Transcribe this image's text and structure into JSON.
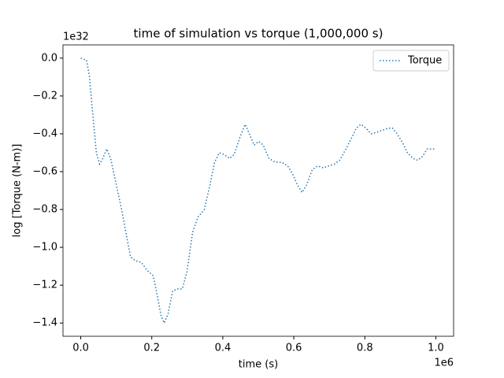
{
  "chart_data": {
    "type": "line",
    "title": "time of simulation vs torque (1,000,000 s)",
    "xlabel": "time (s)",
    "ylabel": "log [Torque (N-m)]",
    "x_offset_label": "1e6",
    "y_offset_label": "1e32",
    "x": [
      0,
      0.016,
      0.024,
      0.035,
      0.044,
      0.053,
      0.062,
      0.073,
      0.084,
      0.098,
      0.115,
      0.129,
      0.14,
      0.153,
      0.171,
      0.186,
      0.204,
      0.215,
      0.226,
      0.235,
      0.246,
      0.259,
      0.273,
      0.286,
      0.299,
      0.315,
      0.33,
      0.348,
      0.364,
      0.377,
      0.39,
      0.404,
      0.419,
      0.432,
      0.448,
      0.463,
      0.477,
      0.488,
      0.501,
      0.514,
      0.53,
      0.548,
      0.565,
      0.583,
      0.596,
      0.61,
      0.623,
      0.636,
      0.652,
      0.667,
      0.683,
      0.698,
      0.714,
      0.729,
      0.747,
      0.763,
      0.776,
      0.789,
      0.803,
      0.818,
      0.836,
      0.851,
      0.865,
      0.878,
      0.891,
      0.907,
      0.92,
      0.936,
      0.949,
      0.962,
      0.976,
      0.989,
      1.0
    ],
    "series": [
      {
        "name": "Torque",
        "color": "#1f77b4",
        "values": [
          0,
          -0.01,
          -0.09,
          -0.32,
          -0.5,
          -0.56,
          -0.53,
          -0.48,
          -0.53,
          -0.65,
          -0.8,
          -0.94,
          -1.05,
          -1.07,
          -1.08,
          -1.12,
          -1.15,
          -1.25,
          -1.36,
          -1.4,
          -1.35,
          -1.23,
          -1.22,
          -1.22,
          -1.13,
          -0.92,
          -0.84,
          -0.8,
          -0.67,
          -0.55,
          -0.5,
          -0.51,
          -0.53,
          -0.51,
          -0.42,
          -0.35,
          -0.41,
          -0.46,
          -0.44,
          -0.46,
          -0.53,
          -0.55,
          -0.55,
          -0.57,
          -0.61,
          -0.67,
          -0.71,
          -0.67,
          -0.59,
          -0.57,
          -0.58,
          -0.57,
          -0.56,
          -0.54,
          -0.48,
          -0.42,
          -0.37,
          -0.35,
          -0.37,
          -0.4,
          -0.39,
          -0.38,
          -0.37,
          -0.37,
          -0.4,
          -0.45,
          -0.5,
          -0.53,
          -0.54,
          -0.52,
          -0.48,
          -0.48,
          -0.48
        ]
      }
    ],
    "xlim": [
      -0.05,
      1.05
    ],
    "ylim": [
      -1.47,
      0.07
    ],
    "xticks": [
      {
        "value": 0,
        "label": "0.0"
      },
      0.2,
      0.4,
      0.6,
      0.8,
      {
        "value": 1,
        "label": "1.0"
      }
    ],
    "yticks": [
      {
        "value": 0,
        "label": "0.0"
      },
      -0.2,
      -0.4,
      -0.6,
      -0.8,
      {
        "value": -1,
        "label": "−1.0"
      },
      -1.2,
      -1.4
    ],
    "grid": false,
    "legend": "upper right",
    "line_style": "dotted"
  }
}
